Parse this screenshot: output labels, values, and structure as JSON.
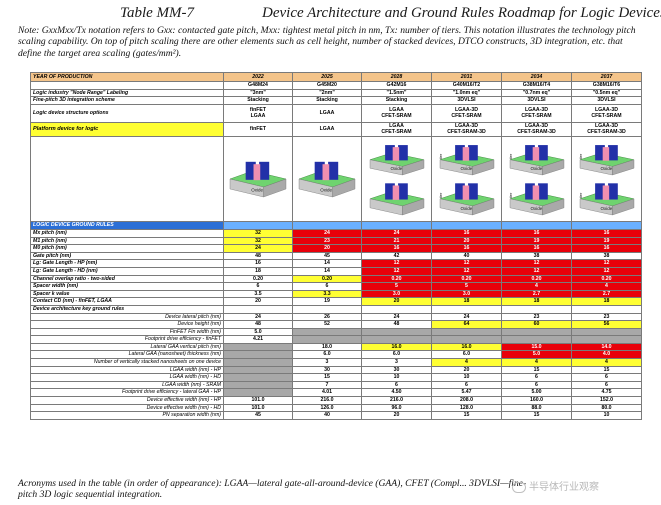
{
  "title": {
    "table_id": "Table MM-7",
    "main": "Device Architecture and Ground Rules Roadmap for Logic Devices."
  },
  "note": "Note: GxxMxx/Tx notation refers to Gxx: contacted gate pitch, Mxx: tightest metal pitch in nm, Tx: number of tiers. This notation illustrates the technology pitch scaling capability. On top of pitch scaling there are other elements such as cell height, number of stacked devices, DTCO constructs, 3D integration, etc. that define the target area scaling (gates/mm²).",
  "table": {
    "header_label": "YEAR OF PRODUCTION",
    "years": [
      "2022",
      "2025",
      "2028",
      "2031",
      "2034",
      "2037"
    ],
    "notation": [
      "G48M24",
      "G45M20",
      "G42M16",
      "G40M16/T2",
      "G38M16/T4",
      "G38M16/T6"
    ],
    "node_label": "Logic industry \"Node Range\" Labeling",
    "nodes": [
      "\"3nm\"",
      "\"2nm\"",
      "\"1.5nm\"",
      "\"1.0nm eq\"",
      "\"0.7nm eq\"",
      "\"0.5nm eq\""
    ],
    "fine_pitch_label": "Fine-pitch 3D integration scheme",
    "fine_pitch": [
      "Stacking",
      "Stacking",
      "Stacking",
      "3DVLSI",
      "3DVLSI",
      "3DVLSI"
    ],
    "struct_label": "Logic device structure options",
    "struct": [
      [
        "finFET",
        "LGAA"
      ],
      [
        "LGAA",
        ""
      ],
      [
        "LGAA",
        "CFET-SRAM"
      ],
      [
        "LGAA-3D",
        "CFET-SRAM"
      ],
      [
        "LGAA-3D",
        "CFET-SRAM"
      ],
      [
        "LGAA-3D",
        "CFET-SRAM"
      ]
    ],
    "platform_label": "Platform device for logic",
    "platform": [
      [
        "finFET",
        ""
      ],
      [
        "LGAA",
        ""
      ],
      [
        "LGAA",
        "CFET-SRAM"
      ],
      [
        "LGAA-3D",
        "CFET-SRAM-3D"
      ],
      [
        "LGAA-3D",
        "CFET-SRAM-3D"
      ],
      [
        "LGAA-3D",
        "CFET-SRAM-3D"
      ]
    ],
    "device_oxide_label": "Oxide",
    "device_tier_label": "tier",
    "section_label": "LOGIC DEVICE GROUND RULES",
    "rows": [
      {
        "label": "Mx pitch (nm)",
        "values": [
          "32",
          "24",
          "24",
          "16",
          "16",
          "16"
        ],
        "styles": [
          "yellow",
          "red",
          "red",
          "red",
          "red",
          "red"
        ],
        "align": "left"
      },
      {
        "label": "M1 pitch (nm)",
        "values": [
          "32",
          "23",
          "21",
          "20",
          "19",
          "19"
        ],
        "styles": [
          "yellow",
          "red",
          "red",
          "red",
          "red",
          "red"
        ],
        "align": "left"
      },
      {
        "label": "M0 pitch (nm)",
        "values": [
          "24",
          "20",
          "16",
          "16",
          "16",
          "16"
        ],
        "styles": [
          "yellow",
          "red",
          "red",
          "red",
          "red",
          "red"
        ],
        "align": "left"
      },
      {
        "label": "Gate pitch (nm)",
        "values": [
          "48",
          "45",
          "42",
          "40",
          "38",
          "38"
        ],
        "styles": [
          "bold",
          "bold",
          "bold",
          "bold",
          "bold",
          "bold"
        ],
        "align": "left"
      },
      {
        "label": "Lg: Gate Length - HP (nm)",
        "values": [
          "16",
          "14",
          "12",
          "12",
          "12",
          "12"
        ],
        "styles": [
          "bold",
          "bold",
          "red",
          "red",
          "red",
          "red"
        ],
        "align": "left"
      },
      {
        "label": "Lg: Gate Length - HD (nm)",
        "values": [
          "18",
          "14",
          "12",
          "12",
          "12",
          "12"
        ],
        "styles": [
          "bold",
          "bold",
          "red",
          "red",
          "red",
          "red"
        ],
        "align": "left"
      },
      {
        "label": "Channel overlap ratio - two-sided",
        "values": [
          "0.20",
          "0.20",
          "0.20",
          "0.20",
          "0.20",
          "0.20"
        ],
        "styles": [
          "bold",
          "yellow",
          "red",
          "red",
          "red",
          "red"
        ],
        "align": "left"
      },
      {
        "label": "Spacer width (nm)",
        "values": [
          "6",
          "6",
          "5",
          "5",
          "4",
          "4"
        ],
        "styles": [
          "bold",
          "bold",
          "red",
          "red",
          "red",
          "red"
        ],
        "align": "left"
      },
      {
        "label": "Spacer k value",
        "values": [
          "3.5",
          "3.3",
          "3.0",
          "3.0",
          "2.7",
          "2.7"
        ],
        "styles": [
          "bold",
          "yellow",
          "red",
          "red",
          "red",
          "red"
        ],
        "align": "left"
      },
      {
        "label": "Contact CD (nm) - finFET, LGAA",
        "values": [
          "20",
          "19",
          "20",
          "18",
          "18",
          "18"
        ],
        "styles": [
          "bold",
          "bold",
          "yellow",
          "yellow",
          "yellow",
          "yellow"
        ],
        "align": "left"
      },
      {
        "label": "Device architecture key ground rules",
        "values": [
          "",
          "",
          "",
          "",
          "",
          ""
        ],
        "styles": [
          "",
          "",
          "",
          "",
          "",
          ""
        ],
        "align": "left"
      },
      {
        "label": "Device lateral pitch (nm)",
        "values": [
          "24",
          "26",
          "24",
          "24",
          "23",
          "23"
        ],
        "styles": [
          "bold",
          "bold",
          "bold",
          "bold",
          "bold",
          "bold"
        ],
        "align": "right"
      },
      {
        "label": "Device height (nm)",
        "values": [
          "48",
          "52",
          "48",
          "64",
          "60",
          "56"
        ],
        "styles": [
          "bold",
          "bold",
          "bold",
          "yellow",
          "yellow",
          "yellow"
        ],
        "align": "right"
      },
      {
        "label": "FinFET Fin width (nm)",
        "values": [
          "5.0",
          "",
          "",
          "",
          "",
          ""
        ],
        "styles": [
          "bold",
          "gray",
          "gray",
          "gray",
          "gray",
          "gray"
        ],
        "align": "right"
      },
      {
        "label": "Footprint drive efficiency - finFET",
        "values": [
          "4.21",
          "",
          "",
          "",
          "",
          ""
        ],
        "styles": [
          "bold",
          "gray",
          "gray",
          "gray",
          "gray",
          "gray"
        ],
        "align": "right"
      },
      {
        "label": "Lateral GAA vertical pitch (nm)",
        "values": [
          "",
          "18.0",
          "16.0",
          "16.0",
          "15.0",
          "14.0"
        ],
        "styles": [
          "gray",
          "bold",
          "yellow",
          "yellow",
          "red",
          "red"
        ],
        "align": "right"
      },
      {
        "label": "Lateral GAA (nanosheet) thickness (nm)",
        "values": [
          "",
          "6.0",
          "6.0",
          "6.0",
          "5.0",
          "4.0"
        ],
        "styles": [
          "gray",
          "bold",
          "bold",
          "bold",
          "red",
          "red"
        ],
        "align": "right"
      },
      {
        "label": "Number of vertically stacked nanosheets on one device",
        "values": [
          "",
          "3",
          "3",
          "4",
          "4",
          "4"
        ],
        "styles": [
          "gray",
          "bold",
          "bold",
          "yellow",
          "yellow",
          "yellow"
        ],
        "align": "right"
      },
      {
        "label": "LGAA width (nm) - HP",
        "values": [
          "",
          "30",
          "30",
          "20",
          "15",
          "15"
        ],
        "styles": [
          "gray",
          "bold",
          "bold",
          "bold",
          "bold",
          "bold"
        ],
        "align": "right"
      },
      {
        "label": "LGAA width (nm) - HD",
        "values": [
          "",
          "15",
          "10",
          "10",
          "6",
          "6"
        ],
        "styles": [
          "gray",
          "bold",
          "bold",
          "bold",
          "bold",
          "bold"
        ],
        "align": "right"
      },
      {
        "label": "LGAA width (nm) - SRAM",
        "values": [
          "",
          "7",
          "6",
          "6",
          "6",
          "6"
        ],
        "styles": [
          "gray",
          "bold",
          "bold",
          "bold",
          "bold",
          "bold"
        ],
        "align": "right"
      },
      {
        "label": "Footprint drive efficiency - lateral GAA - HP",
        "values": [
          "",
          "4.01",
          "4.50",
          "5.47",
          "5.00",
          "4.75"
        ],
        "styles": [
          "gray",
          "bold",
          "bold",
          "bold",
          "bold",
          "bold"
        ],
        "align": "right"
      },
      {
        "label": "Device effective width (nm) - HP",
        "values": [
          "101.0",
          "216.0",
          "216.0",
          "208.0",
          "160.0",
          "152.0"
        ],
        "styles": [
          "bold",
          "bold",
          "bold",
          "bold",
          "bold",
          "bold"
        ],
        "align": "right"
      },
      {
        "label": "Device effective width (nm) - HD",
        "values": [
          "101.0",
          "126.0",
          "96.0",
          "128.0",
          "88.0",
          "80.0"
        ],
        "styles": [
          "bold",
          "bold",
          "bold",
          "bold",
          "bold",
          "bold"
        ],
        "align": "right"
      },
      {
        "label": "PN separation width (nm)",
        "values": [
          "45",
          "40",
          "20",
          "15",
          "15",
          "10"
        ],
        "styles": [
          "bold",
          "bold",
          "bold",
          "bold",
          "bold",
          "bold"
        ],
        "align": "right"
      }
    ]
  },
  "footer": "Acronyms used in the table (in order of appearance): LGAA—lateral gate-all-around-device (GAA), CFET (Compl... 3DVLSI—fine-pitch 3D logic sequential integration.",
  "watermark": "半导体行业观察",
  "colors": {
    "header_bg": "#f4c48a",
    "section_bg": "#2b6fd6",
    "yellow": "#ffff33",
    "red": "#e8000a",
    "gray": "#a8a8a8"
  }
}
